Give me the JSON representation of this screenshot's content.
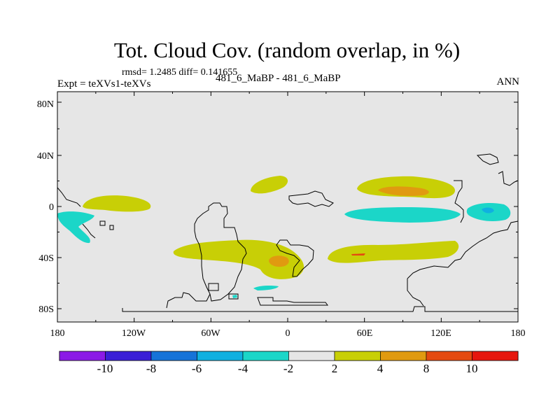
{
  "header": {
    "title": "Tot. Cloud Cov. (random overlap, in %)",
    "stats": "rmsd= 1.2485 diff= 0.141655",
    "experiment": "Expt = teXVs1-teXVs",
    "case": "481_6_MaBP - 481_6_MaBP",
    "season": "ANN"
  },
  "axes": {
    "x_ticks": [
      "180",
      "120W",
      "60W",
      "0",
      "60E",
      "120E",
      "180"
    ],
    "y_ticks": [
      "80N",
      "40N",
      "0",
      "40S",
      "80S"
    ]
  },
  "colorbar": {
    "levels": [
      "-10",
      "-8",
      "-6",
      "-4",
      "-2",
      "2",
      "4",
      "8",
      "10"
    ],
    "colors": [
      "#8b1ae6",
      "#3a1fd6",
      "#1673d8",
      "#10b0e0",
      "#1bd6c8",
      "#e6e6e6",
      "#c8cf06",
      "#e09a10",
      "#e44a10",
      "#e6170e"
    ]
  },
  "map_colors": {
    "background": "#e6e6e6",
    "neg_2_4": "#1bd6c8",
    "neg_4_6": "#10b0e0",
    "pos_2_4": "#c8cf06",
    "pos_4_8": "#e09a10",
    "pos_8_10": "#e44a10"
  }
}
